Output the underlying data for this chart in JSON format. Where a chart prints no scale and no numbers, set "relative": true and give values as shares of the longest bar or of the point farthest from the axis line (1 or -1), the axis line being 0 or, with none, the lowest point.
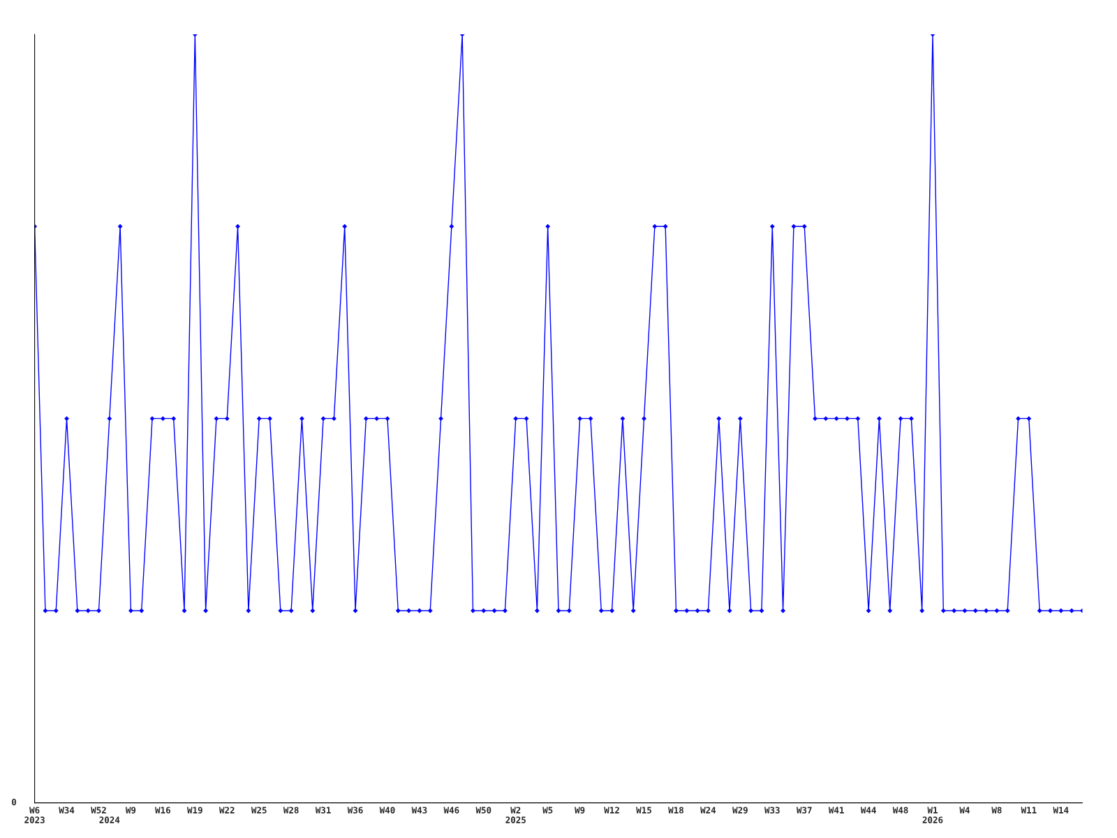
{
  "chart_data": {
    "type": "line",
    "relative": true,
    "annotations": [
      "0"
    ],
    "marker": "diamond",
    "line_style": "solid",
    "grid": false,
    "legend": false,
    "categories": [
      "W6\n2023",
      null,
      null,
      "W34",
      null,
      null,
      "W52",
      "\n2024",
      null,
      "W9",
      null,
      null,
      "W16",
      null,
      null,
      "W19",
      null,
      null,
      "W22",
      null,
      null,
      "W25",
      null,
      null,
      "W28",
      null,
      null,
      "W31",
      null,
      null,
      "W36",
      null,
      null,
      "W40",
      null,
      null,
      "W43",
      null,
      null,
      "W46",
      null,
      null,
      "W50",
      null,
      null,
      "W2\n2025",
      null,
      null,
      "W5",
      null,
      null,
      "W9",
      null,
      null,
      "W12",
      null,
      null,
      "W15",
      null,
      null,
      "W18",
      null,
      null,
      "W24",
      null,
      null,
      "W29",
      null,
      null,
      "W33",
      null,
      null,
      "W37",
      null,
      null,
      "W41",
      null,
      null,
      "W44",
      null,
      null,
      "W48",
      null,
      null,
      "W1\n2026",
      null,
      null,
      "W4",
      null,
      null,
      "W8",
      null,
      null,
      "W11",
      null,
      null,
      "W14",
      null,
      null
    ],
    "series": [
      {
        "color": "#0000ff",
        "values": [
          0.75,
          0.25,
          0.25,
          0.5,
          0.25,
          0.25,
          0.25,
          0.5,
          0.75,
          0.25,
          0.25,
          0.5,
          0.5,
          0.5,
          0.25,
          1,
          0.25,
          0.5,
          0.5,
          0.75,
          0.25,
          0.5,
          0.5,
          0.25,
          0.25,
          0.5,
          0.25,
          0.5,
          0.5,
          0.75,
          0.25,
          0.5,
          0.5,
          0.5,
          0.25,
          0.25,
          0.25,
          0.25,
          0.5,
          0.75,
          1,
          0.25,
          0.25,
          0.25,
          0.25,
          0.5,
          0.5,
          0.25,
          0.75,
          0.25,
          0.25,
          0.5,
          0.5,
          0.25,
          0.25,
          0.5,
          0.25,
          0.5,
          0.75,
          0.75,
          0.25,
          0.25,
          0.25,
          0.25,
          0.5,
          0.25,
          0.5,
          0.25,
          0.25,
          0.75,
          0.25,
          0.75,
          0.75,
          0.5,
          0.5,
          0.5,
          0.5,
          0.5,
          0.25,
          0.5,
          0.25,
          0.5,
          0.5,
          0.25,
          1,
          0.25,
          0.25,
          0.25,
          0.25,
          0.25,
          0.25,
          0.25,
          0.5,
          0.5,
          0.25,
          0.25,
          0.25,
          0.25,
          0.25
        ]
      }
    ]
  }
}
